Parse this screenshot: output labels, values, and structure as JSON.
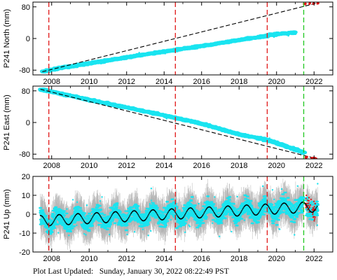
{
  "chart_data": [
    {
      "type": "scatter",
      "ylabel": "P241 North (mm)",
      "xlim": [
        2007.0,
        2023.0
      ],
      "ylim": [
        -92,
        92
      ],
      "x_ticks": [
        2008,
        2010,
        2012,
        2014,
        2016,
        2018,
        2020,
        2022
      ],
      "y_ticks": [
        -80,
        0,
        80
      ],
      "grid": false,
      "series": [
        {
          "values": [
            [
              2007.5,
              -84
            ],
            [
              2008.5,
              -74
            ],
            [
              2010.0,
              -63
            ],
            [
              2012.0,
              -48
            ],
            [
              2014.0,
              -33
            ],
            [
              2016.0,
              -19
            ],
            [
              2018.0,
              -4
            ],
            [
              2019.5,
              7
            ],
            [
              2020.0,
              11
            ],
            [
              2021.0,
              15
            ]
          ]
        },
        {
          "values": [
            [
              2021.5,
              87
            ],
            [
              2021.8,
              88
            ],
            [
              2022.0,
              89
            ],
            [
              2022.2,
              90
            ]
          ]
        },
        {
          "values": [
            [
              2007.5,
              -84
            ],
            [
              2022.2,
              90
            ]
          ]
        }
      ],
      "vlines_red": [
        2007.85,
        2014.6,
        2019.5
      ],
      "vlines_green": [
        2021.45
      ]
    },
    {
      "type": "scatter",
      "ylabel": "P241 East (mm)",
      "xlim": [
        2007.0,
        2023.0
      ],
      "ylim": [
        -92,
        92
      ],
      "x_ticks": [
        2008,
        2010,
        2012,
        2014,
        2016,
        2018,
        2020,
        2022
      ],
      "y_ticks": [
        -80,
        0,
        80
      ],
      "grid": false,
      "series": [
        {
          "values": [
            [
              2007.4,
              84
            ],
            [
              2008.0,
              78
            ],
            [
              2010.0,
              57
            ],
            [
              2012.0,
              38
            ],
            [
              2014.0,
              18
            ],
            [
              2016.0,
              -3
            ],
            [
              2018.0,
              -30
            ],
            [
              2019.5,
              -44
            ],
            [
              2020.5,
              -60
            ],
            [
              2021.5,
              -77
            ]
          ]
        },
        {
          "values": [
            [
              2021.6,
              -88
            ],
            [
              2021.9,
              -90
            ],
            [
              2022.1,
              -91
            ]
          ]
        },
        {
          "values": [
            [
              2007.4,
              84
            ],
            [
              2022.1,
              -91
            ]
          ]
        }
      ],
      "vlines_red": [
        2007.85,
        2014.6,
        2019.5
      ],
      "vlines_green": [
        2021.45
      ]
    },
    {
      "type": "scatter",
      "ylabel": "P241 Up (mm)",
      "xlim": [
        2007.0,
        2023.0
      ],
      "ylim": [
        -20,
        20
      ],
      "x_ticks": [
        2008,
        2010,
        2012,
        2014,
        2016,
        2018,
        2020,
        2022
      ],
      "y_ticks": [
        -20,
        -10,
        0,
        10,
        20
      ],
      "grid": false,
      "seasonal": {
        "x_start": 2007.4,
        "x_end": 2022.2,
        "offset_start": -3.5,
        "offset_end": 4.0,
        "amplitude": 2.8,
        "phase": 0.15
      },
      "vlines_red": [
        2007.85,
        2014.6,
        2019.5
      ],
      "vlines_green": [
        2021.45
      ]
    }
  ],
  "footer": {
    "label": "Plot Last Updated:",
    "value": "Sunday, January 30, 2022 08:22:49 PST"
  }
}
